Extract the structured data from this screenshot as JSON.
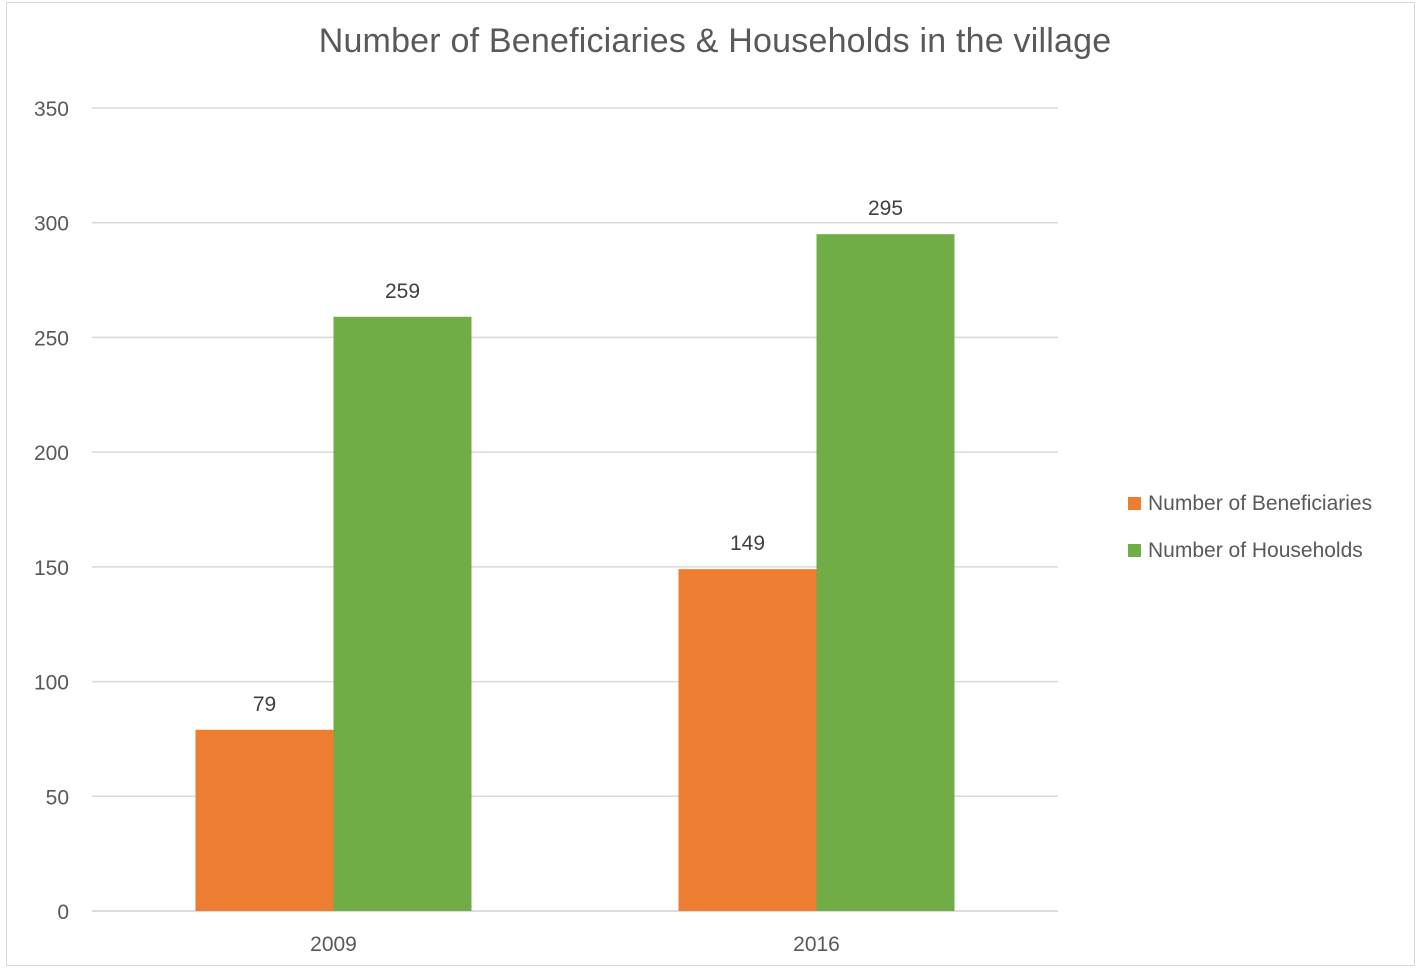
{
  "chart_data": {
    "type": "bar",
    "title": "Number of Beneficiaries & Households in the village",
    "xlabel": "",
    "ylabel": "",
    "categories": [
      "2009",
      "2016"
    ],
    "series": [
      {
        "name": "Number of Beneficiaries",
        "values": [
          79,
          149
        ],
        "color": "#ED7D31"
      },
      {
        "name": "Number of Households",
        "values": [
          259,
          295
        ],
        "color": "#70AD47"
      }
    ],
    "ylim": [
      0,
      350
    ],
    "yticks": [
      "0",
      "50",
      "100",
      "150",
      "200",
      "250",
      "300",
      "350"
    ],
    "grid": true,
    "data_labels": true,
    "legend_position": "right"
  }
}
